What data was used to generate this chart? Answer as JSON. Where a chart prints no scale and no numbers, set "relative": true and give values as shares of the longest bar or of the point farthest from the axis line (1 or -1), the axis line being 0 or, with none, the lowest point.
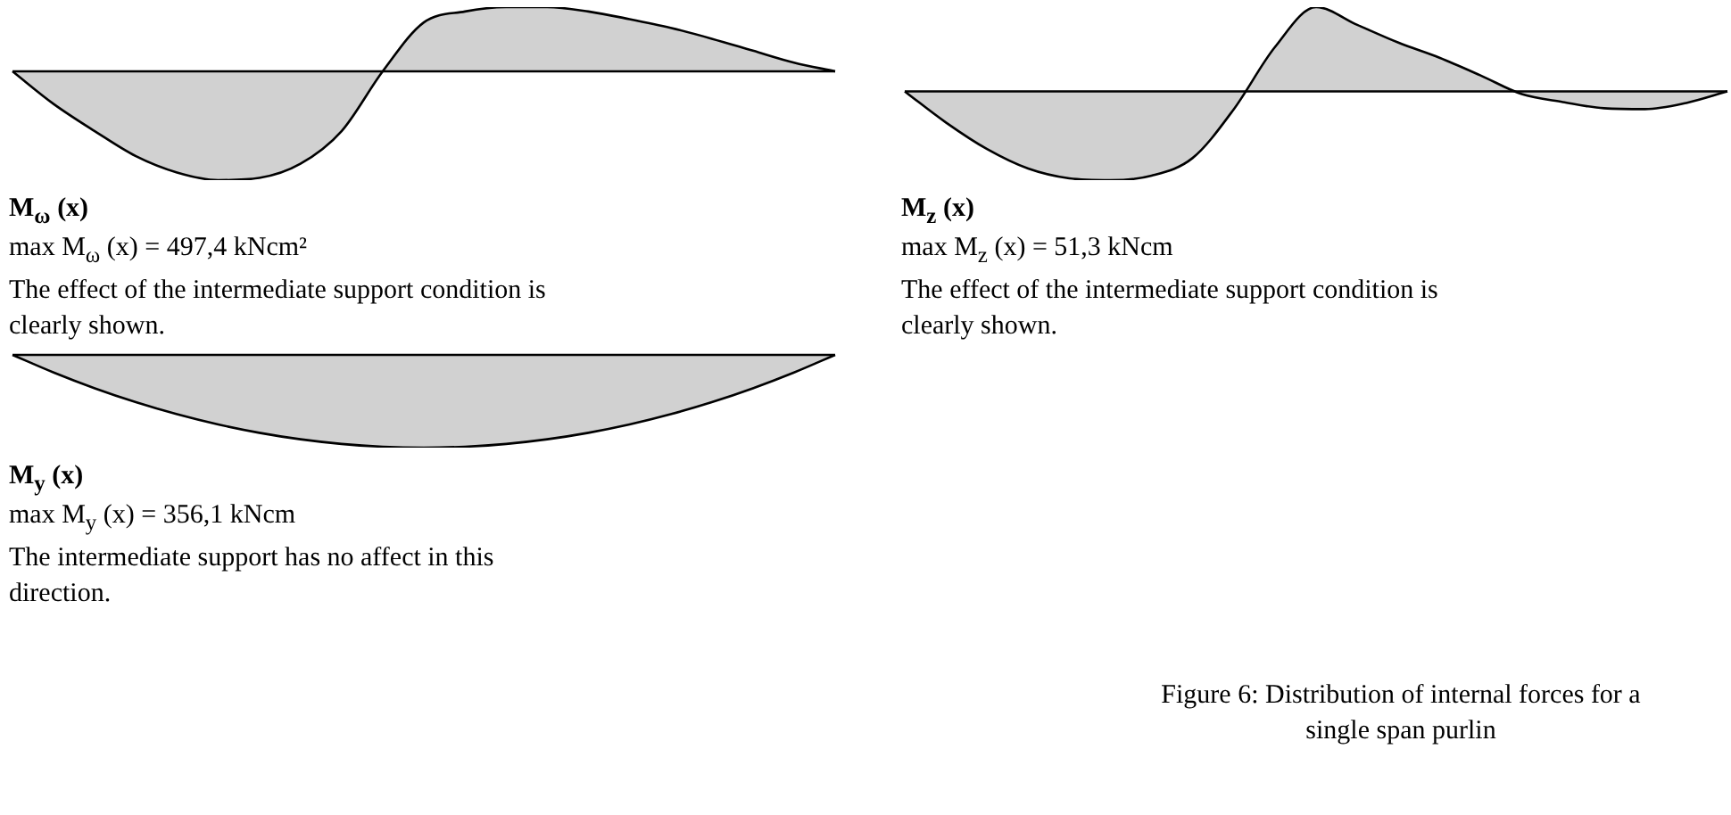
{
  "chart_data": [
    {
      "type": "area",
      "relative": true,
      "title": "M$_{ω}$ (x)",
      "annotations": [
        "max M$_{ω}$ (x) = 497,4 kNcm²",
        "The effect of the intermediate support condition is clearly shown."
      ],
      "categories": [
        null,
        null,
        null,
        null,
        null,
        null,
        null,
        null,
        null,
        null,
        null,
        null,
        null,
        null,
        null,
        null,
        null,
        null,
        null,
        null,
        null
      ],
      "series": [
        {
          "color": "#000000",
          "values": [
            0,
            -0.3,
            -0.55,
            -0.78,
            -0.93,
            -1,
            -0.98,
            -0.85,
            -0.55,
            0,
            0.45,
            0.55,
            0.59,
            0.59,
            0.55,
            0.48,
            0.4,
            0.3,
            0.19,
            0.08,
            0
          ]
        }
      ]
    },
    {
      "type": "area",
      "relative": true,
      "title": "M$_{z}$ (x)",
      "annotations": [
        "max M$_{z}$ (x) = 51,3 kNcm",
        "The effect of the intermediate support condition is clearly shown."
      ],
      "categories": [
        null,
        null,
        null,
        null,
        null,
        null,
        null,
        null,
        null,
        null,
        null,
        null,
        null,
        null,
        null,
        null,
        null,
        null,
        null,
        null,
        null
      ],
      "series": [
        {
          "color": "#000000",
          "values": [
            0,
            -0.35,
            -0.65,
            -0.87,
            -0.98,
            -1,
            -0.95,
            -0.75,
            -0.2,
            0.5,
            0.95,
            0.75,
            0.55,
            0.38,
            0.18,
            -0.03,
            -0.12,
            -0.19,
            -0.2,
            -0.13,
            0
          ]
        }
      ]
    },
    {
      "type": "area",
      "relative": true,
      "title": "M$_{y}$ (x)",
      "annotations": [
        "max M$_{y}$ (x) = 356,1 kNcm",
        "The intermediate support has no affect in this direction.",
        "Figure 6:  Distribution of internal forces for a single span purlin"
      ],
      "categories": [
        null,
        null,
        null,
        null,
        null,
        null,
        null,
        null,
        null,
        null,
        null,
        null,
        null,
        null,
        null,
        null,
        null,
        null,
        null,
        null,
        null
      ],
      "series": [
        {
          "color": "#000000",
          "values": [
            0,
            -0.19,
            -0.36,
            -0.51,
            -0.64,
            -0.75,
            -0.84,
            -0.91,
            -0.96,
            -0.99,
            -1,
            -0.99,
            -0.96,
            -0.91,
            -0.84,
            -0.75,
            -0.64,
            -0.51,
            -0.36,
            -0.19,
            0
          ]
        }
      ]
    }
  ]
}
